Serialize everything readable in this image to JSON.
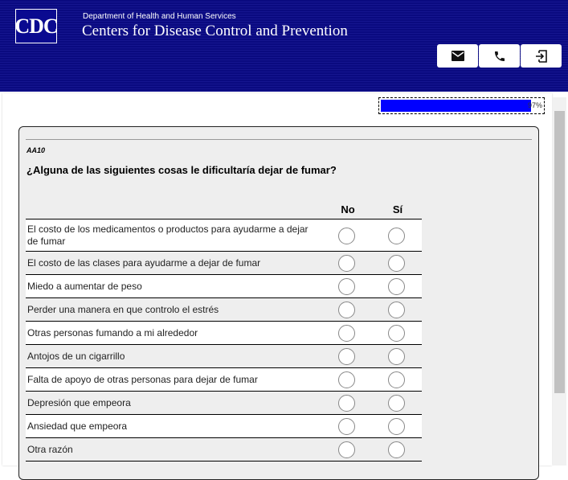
{
  "header": {
    "logo": "CDC",
    "department": "Department of Health and Human Services",
    "agency": "Centers for Disease Control and Prevention",
    "buttons": [
      {
        "icon": "mail-icon"
      },
      {
        "icon": "phone-icon"
      },
      {
        "icon": "exit-icon"
      }
    ]
  },
  "progress": {
    "percent": 97,
    "label": "97%",
    "color": "#0000ff"
  },
  "question": {
    "id": "AA10",
    "text": "¿Alguna de las siguientes cosas le dificultaría dejar de fumar?",
    "columns": [
      "No",
      "Sí"
    ],
    "rows": [
      "El costo de los medicamentos o productos para ayudarme a dejar de fumar",
      "El costo de las clases para ayudarme a dejar de fumar",
      "Miedo a aumentar de peso",
      "Perder una manera en que controlo el estrés",
      "Otras personas fumando a mi alrededor",
      "Antojos de un cigarrillo",
      "Falta de apoyo de otras personas para dejar de fumar",
      "Depresión que empeora",
      "Ansiedad que empeora",
      "Otra razón"
    ]
  }
}
